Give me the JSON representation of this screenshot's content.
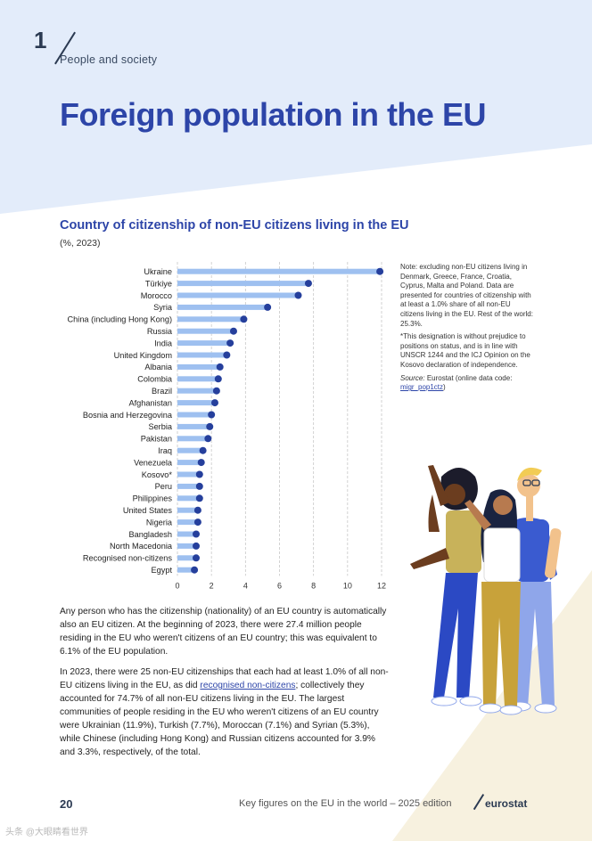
{
  "section": {
    "number": "1",
    "label": "People and society"
  },
  "page_title": "Foreign population in the EU",
  "chart_data": {
    "type": "bar",
    "title": "Country of citizenship of non-EU citizens living in the EU",
    "subtitle": "(%, 2023)",
    "categories": [
      "Ukraine",
      "Türkiye",
      "Morocco",
      "Syria",
      "China (including Hong Kong)",
      "Russia",
      "India",
      "United Kingdom",
      "Albania",
      "Colombia",
      "Brazil",
      "Afghanistan",
      "Bosnia and Herzegovina",
      "Serbia",
      "Pakistan",
      "Iraq",
      "Venezuela",
      "Kosovo*",
      "Peru",
      "Philippines",
      "United States",
      "Nigeria",
      "Bangladesh",
      "North Macedonia",
      "Recognised non-citizens",
      "Egypt"
    ],
    "values": [
      11.9,
      7.7,
      7.1,
      5.3,
      3.9,
      3.3,
      3.1,
      2.9,
      2.5,
      2.4,
      2.3,
      2.2,
      2.0,
      1.9,
      1.8,
      1.5,
      1.4,
      1.3,
      1.3,
      1.3,
      1.2,
      1.2,
      1.1,
      1.1,
      1.1,
      1.0
    ],
    "xlim": [
      0,
      12
    ],
    "xticks": [
      0,
      2,
      4,
      6,
      8,
      10,
      12
    ],
    "xlabel": "",
    "ylabel": "",
    "grid": "vertical dashed",
    "bar_color": "#9ec0f0",
    "dot_color": "#253f9c"
  },
  "note": {
    "text1": "Note: excluding non-EU citizens living in Denmark, Greece, France, Croatia, Cyprus, Malta and Poland. Data are presented for countries of citizenship with at least a 1.0% share of all non-EU citizens living in the EU. Rest of the world: 25.3%.",
    "text2": "*This designation is without prejudice to positions on status, and is in line with UNSCR 1244 and the ICJ Opinion on the Kosovo declaration of independence.",
    "source_label": "Source:",
    "source_text": "Eurostat (online data code: ",
    "source_link": "migr_pop1ctz",
    "source_end": ")"
  },
  "body": {
    "p1": "Any person who has the citizenship (nationality) of an EU country is automatically also an EU citizen. At the beginning of 2023, there were 27.4 million people residing in the EU who weren't citizens of an EU country; this was equivalent to 6.1% of the EU population.",
    "p2a": "In 2023, there were 25 non-EU citizenships that each had at least 1.0% of all non-EU citizens living in the EU, as did ",
    "p2_link": "recognised non-citizens",
    "p2b": "; collectively they accounted for 74.7% of all non-EU citizens living in the EU. The largest communities of people residing in the EU who weren't citizens of an EU country were Ukrainian (11.9%), Turkish (7.7%), Moroccan (7.1%) and Syrian (5.3%), while Chinese (including Hong Kong) and Russian citizens accounted for 3.9% and 3.3%, respectively, of the total."
  },
  "footer": {
    "page_number": "20",
    "publication": "Key figures on the EU in the world – 2025 edition",
    "logo": "eurostat"
  },
  "watermark": "头条 @大眼睛看世界",
  "colors": {
    "title_blue": "#2d45a8",
    "bg_top": "#e3ecfa",
    "bg_bottom": "#f7f1df"
  }
}
